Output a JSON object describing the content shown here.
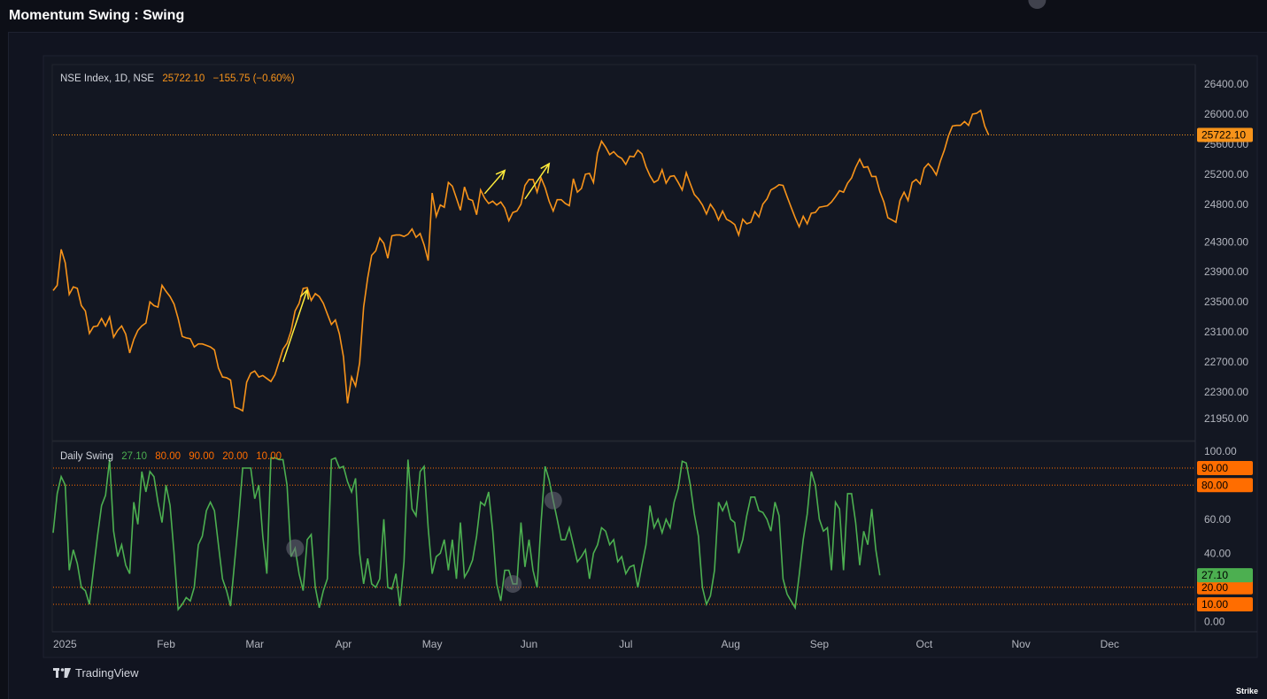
{
  "page": {
    "title": "Momentum Swing : Swing",
    "brand": "TradingView",
    "watermark": "Strike"
  },
  "colors": {
    "price": "#f7931a",
    "osc": "#4caf50",
    "level": "#ff6d00",
    "arrow": "#ffeb3b",
    "marker": "#6b6e7a"
  },
  "price_legend": {
    "symbol": "NSE Index, 1D, NSE",
    "value": "25722.10",
    "change": "−155.75 (−0.60%)"
  },
  "osc_legend": {
    "name": "Daily Swing",
    "value": "27.10",
    "levels": [
      "80.00",
      "90.00",
      "20.00",
      "10.00"
    ]
  },
  "chart_data": [
    {
      "type": "line",
      "series": [
        {
          "values": [
            23650,
            23720,
            24200,
            24020,
            23600,
            23700,
            23680,
            23450,
            23380,
            23080,
            23170,
            23180,
            23280,
            23180,
            23300,
            23030,
            23120,
            23180,
            23070,
            22820,
            23000,
            23120,
            23180,
            23220,
            23500,
            23450,
            23430,
            23720,
            23640,
            23570,
            23470,
            23280,
            23040,
            23020,
            23010,
            22900,
            22940,
            22940,
            22920,
            22900,
            22860,
            22620,
            22500,
            22490,
            22460,
            22100,
            22080,
            22050,
            22430,
            22550,
            22580,
            22500,
            22520,
            22480,
            22440,
            22530,
            22700,
            22870,
            22950,
            23110,
            23380,
            23480,
            23680,
            23690,
            23520,
            23610,
            23570,
            23480,
            23340,
            23200,
            23260,
            23070,
            22770,
            22150,
            22500,
            22380,
            22690,
            23430,
            23820,
            24120,
            24180,
            24350,
            24280,
            24080,
            24380,
            24390,
            24390,
            24370,
            24400,
            24470,
            24360,
            24410,
            24260,
            24050,
            24950,
            24640,
            24790,
            24760,
            25090,
            25040,
            24880,
            24720,
            25030,
            24870,
            24850,
            24660,
            24990,
            24880,
            24810,
            24840,
            24790,
            24830,
            24750,
            24580,
            24690,
            24710,
            24800,
            25050,
            25130,
            25130,
            24960,
            25150,
            25020,
            24840,
            24710,
            24860,
            24860,
            24810,
            24780,
            25140,
            24960,
            25010,
            25200,
            25210,
            25090,
            25480,
            25640,
            25560,
            25460,
            25500,
            25440,
            25410,
            25330,
            25440,
            25430,
            25520,
            25470,
            25300,
            25180,
            25090,
            25120,
            25260,
            25080,
            25170,
            25180,
            25090,
            24990,
            25220,
            25070,
            24930,
            24870,
            24790,
            24670,
            24800,
            24720,
            24590,
            24710,
            24600,
            24570,
            24530,
            24390,
            24600,
            24540,
            24560,
            24700,
            24630,
            24800,
            24870,
            24990,
            25020,
            25060,
            25050,
            24900,
            24760,
            24620,
            24500,
            24640,
            24540,
            24680,
            24690,
            24760,
            24770,
            24780,
            24830,
            24900,
            24980,
            24960,
            25080,
            25150,
            25290,
            25400,
            25290,
            25300,
            25170,
            25170,
            24970,
            24830,
            24620,
            24590,
            24560,
            24850,
            24960,
            24850,
            25090,
            25130,
            25070,
            25280,
            25340,
            25280,
            25190,
            25370,
            25520,
            25710,
            25840,
            25850,
            25850,
            25900,
            25850,
            26000,
            26010,
            26050,
            25840,
            25720
          ]
        }
      ],
      "ylim": [
        21700,
        26600
      ],
      "y_ticks": [
        "26400.00",
        "26000.00",
        "25600.00",
        "25200.00",
        "24800.00",
        "24300.00",
        "23900.00",
        "23500.00",
        "23100.00",
        "22700.00",
        "22300.00",
        "21950.00"
      ],
      "y_tick_values": [
        26400,
        26000,
        25600,
        25200,
        24800,
        24300,
        23900,
        23500,
        23100,
        22700,
        22300,
        21950
      ],
      "last_value_label": "25722.10",
      "last_value": 25722.1
    },
    {
      "type": "line",
      "series": [
        {
          "values": [
            52,
            75,
            85,
            80,
            30,
            42,
            34,
            20,
            18,
            10,
            30,
            50,
            68,
            74,
            95,
            53,
            38,
            45,
            33,
            28,
            70,
            57,
            88,
            76,
            88,
            85,
            70,
            58,
            80,
            68,
            40,
            7,
            10,
            14,
            12,
            20,
            45,
            50,
            65,
            70,
            65,
            45,
            25,
            18,
            9,
            35,
            60,
            90,
            90,
            90,
            72,
            80,
            50,
            28,
            96,
            96,
            95,
            95,
            80,
            38,
            43,
            28,
            18,
            48,
            51,
            20,
            8,
            18,
            25,
            95,
            96,
            90,
            91,
            82,
            76,
            84,
            40,
            22,
            37,
            22,
            20,
            25,
            60,
            20,
            19,
            28,
            9,
            35,
            95,
            66,
            62,
            88,
            91,
            55,
            28,
            38,
            40,
            48,
            30,
            48,
            25,
            58,
            26,
            30,
            36,
            50,
            70,
            68,
            76,
            53,
            22,
            12,
            30,
            30,
            22,
            22,
            58,
            32,
            48,
            30,
            20,
            58,
            91,
            83,
            71,
            60,
            48,
            48,
            55,
            45,
            35,
            38,
            42,
            25,
            40,
            45,
            55,
            53,
            45,
            48,
            35,
            38,
            28,
            32,
            33,
            20,
            33,
            45,
            68,
            55,
            60,
            52,
            60,
            55,
            70,
            78,
            94,
            93,
            80,
            63,
            50,
            20,
            10,
            15,
            30,
            70,
            65,
            70,
            60,
            58,
            40,
            48,
            62,
            73,
            73,
            65,
            64,
            60,
            53,
            70,
            62,
            25,
            16,
            12,
            8,
            27,
            48,
            63,
            88,
            80,
            60,
            53,
            55,
            30,
            70,
            66,
            30,
            75,
            75,
            58,
            33,
            53,
            45,
            66,
            42,
            27
          ]
        }
      ],
      "ylim": [
        -4,
        103
      ],
      "y_ticks": [
        "100.00",
        "60.00",
        "40.00",
        "0.00"
      ],
      "y_tick_values": [
        100,
        60,
        40,
        0
      ],
      "levels": [
        90,
        80,
        20,
        10
      ],
      "level_labels": [
        "90.00",
        "80.00",
        "20.00",
        "10.00"
      ],
      "last_value": 27.1,
      "last_value_label": "27.10",
      "markers_index": [
        60,
        114,
        124,
        244
      ]
    }
  ],
  "x_axis": {
    "labels": [
      "2025",
      "Feb",
      "Mar",
      "Apr",
      "May",
      "Jun",
      "Jul",
      "Aug",
      "Sep",
      "Oct",
      "Nov",
      "Dec"
    ],
    "label_bars": [
      0,
      28,
      50,
      72,
      94,
      118,
      142,
      168,
      190,
      216,
      240,
      262
    ],
    "total_bars": 283
  },
  "arrows": [
    {
      "from": [
        57,
        22700
      ],
      "to": [
        63,
        23660
      ]
    },
    {
      "from": [
        107,
        24940
      ],
      "to": [
        112,
        25250
      ]
    },
    {
      "from": [
        117,
        24870
      ],
      "to": [
        123,
        25340
      ]
    }
  ]
}
